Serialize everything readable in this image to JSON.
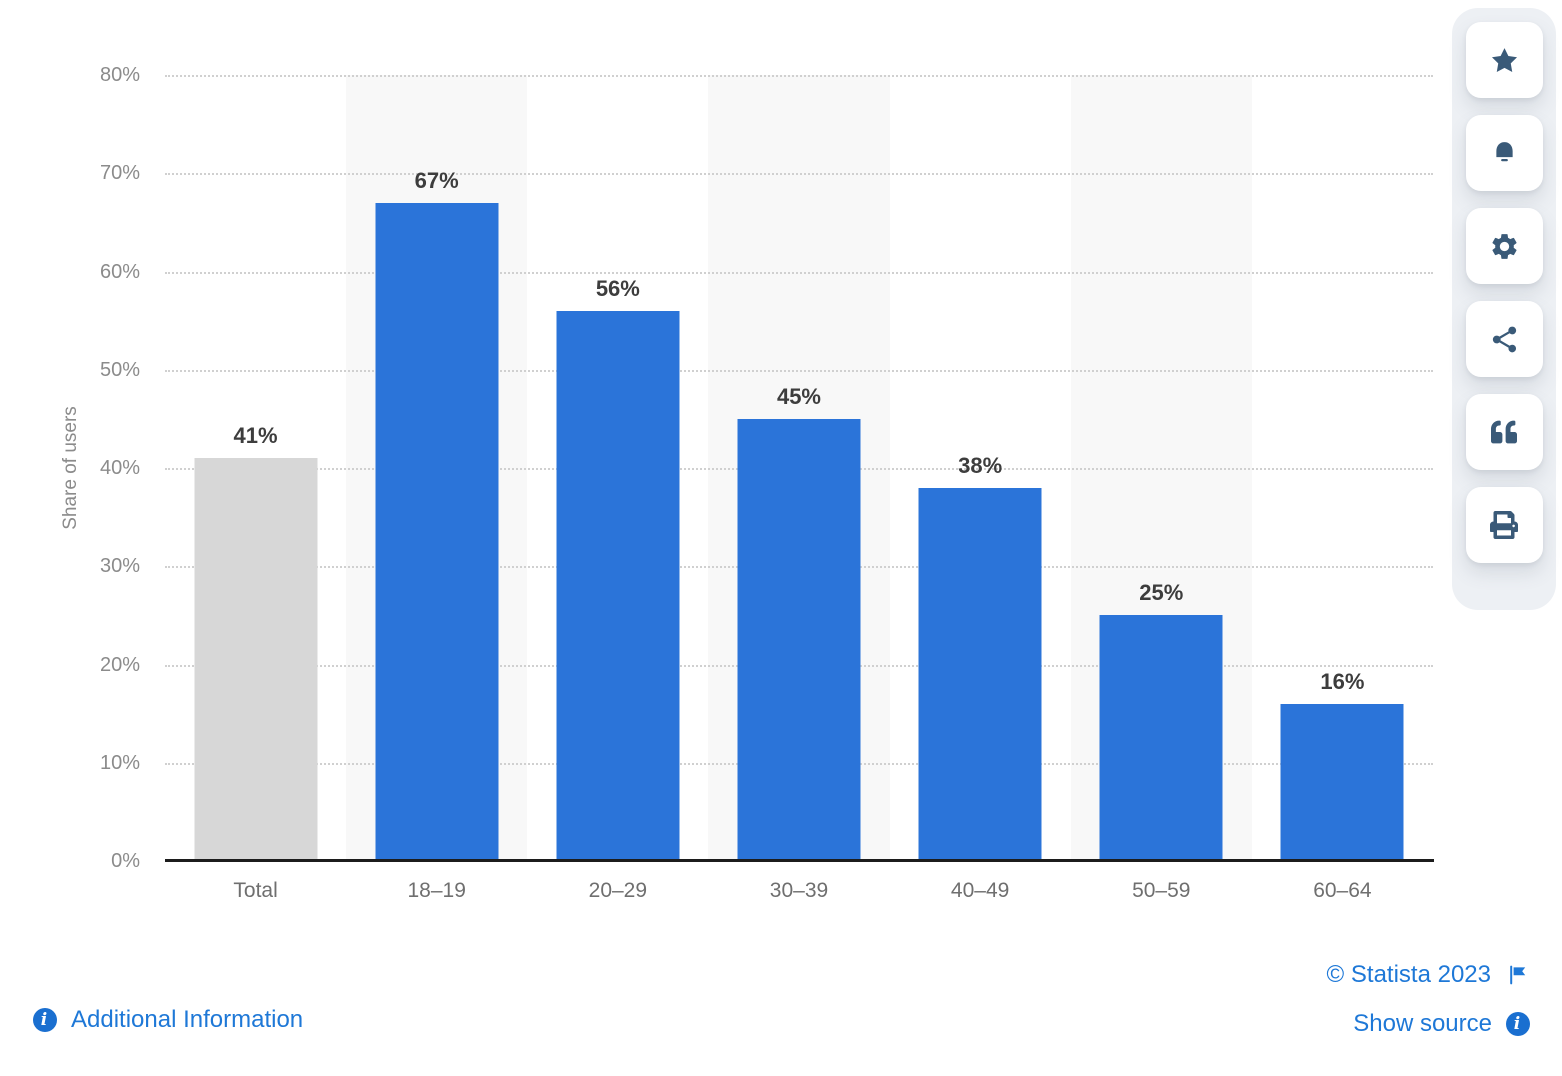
{
  "chart_data": {
    "type": "bar",
    "title": "",
    "categories": [
      "Total",
      "18–19",
      "20–29",
      "30–39",
      "40–49",
      "50–59",
      "60–64"
    ],
    "values": [
      41,
      67,
      56,
      45,
      38,
      25,
      16
    ],
    "value_labels": [
      "41%",
      "67%",
      "56%",
      "45%",
      "38%",
      "25%",
      "16%"
    ],
    "xlabel": "",
    "ylabel": "Share of users",
    "ylim": [
      0,
      80
    ],
    "ytick_step": 10,
    "ytick_labels": [
      "0%",
      "10%",
      "20%",
      "30%",
      "40%",
      "50%",
      "60%",
      "70%",
      "80%"
    ],
    "grid": "horizontal dotted",
    "legend": "none",
    "bar_color": "#2b74d9",
    "total_bar_color": "#d7d7d7",
    "plot_band_color": "#f8f8f8",
    "plot_bands_on_categories": [
      "18–19",
      "30–39",
      "50–59"
    ]
  },
  "toolbar": {
    "buttons": [
      {
        "name": "favorite",
        "icon": "star-icon"
      },
      {
        "name": "notifications",
        "icon": "bell-icon"
      },
      {
        "name": "settings",
        "icon": "gear-icon"
      },
      {
        "name": "share",
        "icon": "share-icon"
      },
      {
        "name": "cite",
        "icon": "quote-icon"
      },
      {
        "name": "print",
        "icon": "print-icon"
      }
    ]
  },
  "footer": {
    "additional_information_label": "Additional Information",
    "copyright": "© Statista 2023",
    "show_source_label": "Show source"
  },
  "icons": {
    "info_glyph": "i",
    "star-icon": "★",
    "bell-icon": "🔔",
    "gear-icon": "⚙",
    "share-icon": "🔗",
    "quote-icon": "“",
    "print-icon": "🖨",
    "flag-icon": "⚑",
    "info-icon": "ⓘ"
  },
  "colors": {
    "bar_blue": "#2b74d9",
    "bar_gray": "#d7d7d7",
    "link_blue": "#1e78d7",
    "info_badge_blue": "#1a6fd0",
    "toolbar_icon_slate": "#3a5a78",
    "toolbar_panel_bg": "#edf0f4",
    "axis_line": "#1c1c1c",
    "tick_text": "#8b8b8b",
    "category_text": "#6f6f6f",
    "value_label_text": "#3d3d3d",
    "plot_band": "#f8f8f8",
    "gridline": "#d0d0d0"
  }
}
